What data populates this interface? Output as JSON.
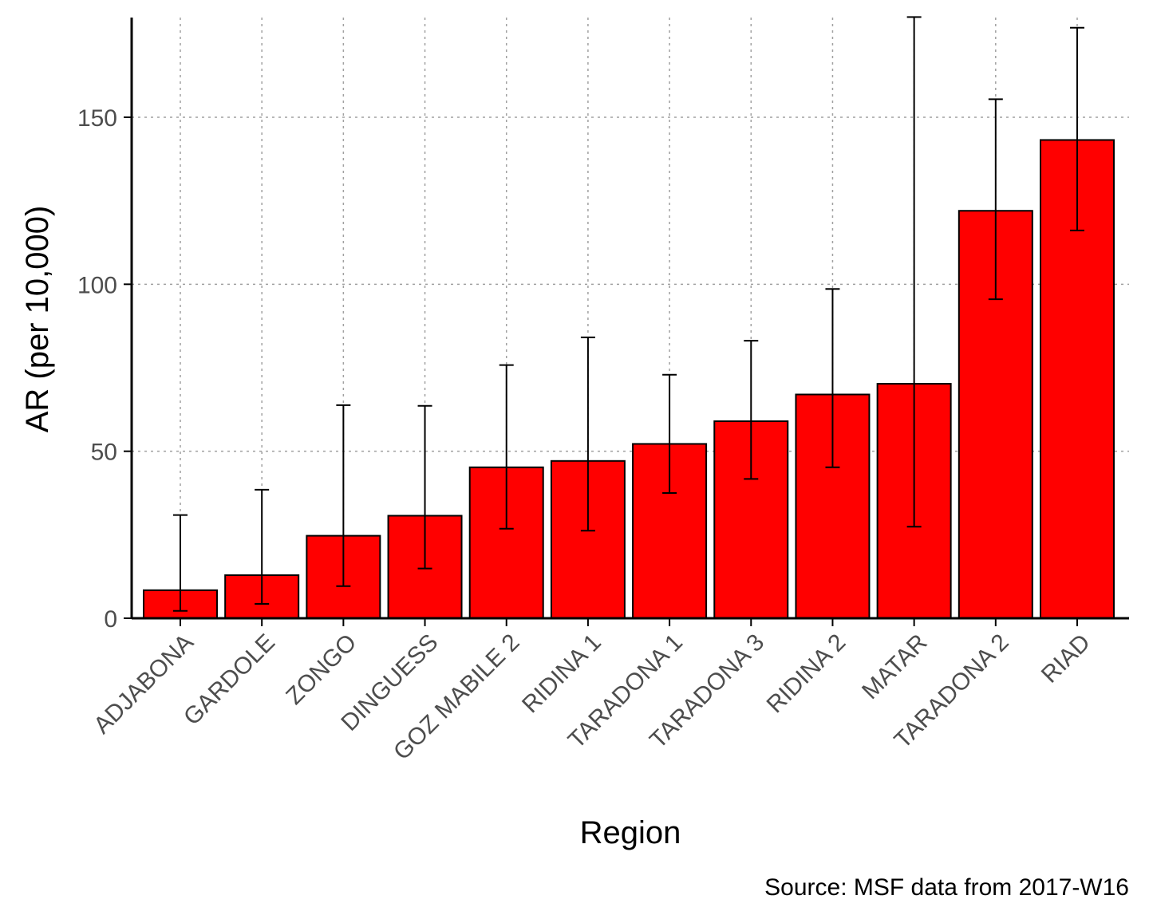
{
  "chart_data": {
    "type": "bar",
    "title": "",
    "xlabel": "Region",
    "ylabel": "AR (per 10,000)",
    "caption": "Source: MSF data from 2017-W16",
    "categories": [
      "ADJABONA",
      "GARDOLE",
      "ZONGO",
      "DINGUESS",
      "GOZ MABILE 2",
      "RIDINA 1",
      "TARADONA 1",
      "TARADONA 3",
      "RIDINA 2",
      "MATAR",
      "TARADONA 2",
      "RIAD"
    ],
    "values": [
      8.4,
      12.9,
      24.7,
      30.7,
      45.2,
      47.1,
      52.2,
      59.0,
      67.0,
      70.2,
      122.0,
      143.2
    ],
    "error_lower": [
      2.2,
      4.3,
      9.6,
      14.9,
      26.8,
      26.2,
      37.5,
      41.7,
      45.2,
      27.4,
      95.5,
      116.1
    ],
    "error_upper": [
      30.9,
      38.5,
      63.8,
      63.6,
      75.8,
      84.1,
      72.9,
      83.1,
      98.6,
      180.0,
      155.4,
      176.8
    ],
    "yticks": [
      0,
      50,
      100,
      150
    ],
    "ytick_labels": [
      "0",
      "50",
      "100",
      "150"
    ],
    "ylim": [
      0,
      180
    ],
    "grid": true,
    "colors": {
      "bar_fill": "#ff0000",
      "bar_stroke": "#000000",
      "grid": "#a0a0a0"
    }
  }
}
